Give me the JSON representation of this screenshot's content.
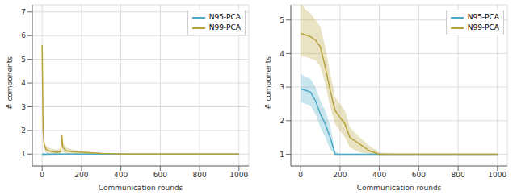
{
  "chart_data": [
    {
      "type": "line",
      "xlabel": "Communication rounds",
      "ylabel": "# components",
      "grid": true,
      "legend": "upper right",
      "x": [
        0,
        5,
        10,
        20,
        30,
        50,
        75,
        95,
        100,
        105,
        120,
        150,
        200,
        250,
        300,
        350,
        400,
        500,
        600,
        700,
        800,
        900,
        1000
      ],
      "xlim": [
        -50,
        1050
      ],
      "xticks": [
        0,
        200,
        400,
        600,
        800,
        1000
      ],
      "ylim": [
        0.5,
        7.3
      ],
      "yticks": [
        1,
        2,
        3,
        4,
        5,
        6,
        7
      ],
      "series": [
        {
          "name": "N95-PCA",
          "color": "#4ba9c8",
          "values": [
            1,
            1,
            1,
            1,
            1,
            1,
            1,
            1,
            1,
            1,
            1,
            1,
            1,
            1,
            1,
            1,
            1,
            1,
            1,
            1,
            1,
            1,
            1
          ],
          "lower": [
            0.9,
            0.9,
            0.92,
            0.94,
            0.95,
            0.96,
            0.97,
            0.98,
            0.98,
            0.98,
            0.99,
            1,
            1,
            1,
            1,
            1,
            1,
            1,
            1,
            1,
            1,
            1,
            1
          ],
          "upper": [
            1,
            1,
            1,
            1,
            1,
            1,
            1,
            1,
            1,
            1,
            1,
            1,
            1,
            1,
            1,
            1,
            1,
            1,
            1,
            1,
            1,
            1,
            1
          ]
        },
        {
          "name": "N99-PCA",
          "color": "#b5a33a",
          "values": [
            5.6,
            2.0,
            1.4,
            1.2,
            1.15,
            1.1,
            1.08,
            1.1,
            1.8,
            1.3,
            1.15,
            1.1,
            1.08,
            1.05,
            1.03,
            1.02,
            1.0,
            1.0,
            1.0,
            1.0,
            1.0,
            1.0,
            1.0
          ],
          "lower": [
            5.2,
            1.7,
            1.2,
            1.05,
            1.0,
            0.98,
            0.98,
            1.0,
            1.5,
            1.1,
            1.0,
            1.0,
            1.0,
            1.0,
            1.0,
            1.0,
            1.0,
            1.0,
            1.0,
            1.0,
            1.0,
            1.0,
            1.0
          ],
          "upper": [
            5.7,
            2.3,
            1.6,
            1.35,
            1.3,
            1.22,
            1.2,
            1.25,
            1.9,
            1.5,
            1.3,
            1.2,
            1.15,
            1.1,
            1.06,
            1.04,
            1.02,
            1.0,
            1.0,
            1.0,
            1.0,
            1.0,
            1.0
          ]
        }
      ]
    },
    {
      "type": "line",
      "xlabel": "Communication rounds",
      "ylabel": "# components",
      "grid": true,
      "legend": "upper right",
      "x": [
        0,
        25,
        50,
        75,
        100,
        125,
        150,
        175,
        200,
        225,
        250,
        300,
        350,
        400,
        500,
        600,
        700,
        800,
        900,
        1000
      ],
      "xlim": [
        -50,
        1050
      ],
      "xticks": [
        0,
        200,
        400,
        600,
        800,
        1000
      ],
      "ylim": [
        0.65,
        5.45
      ],
      "yticks": [
        1,
        2,
        3,
        4,
        5
      ],
      "series": [
        {
          "name": "N95-PCA",
          "color": "#4ba9c8",
          "values": [
            2.95,
            2.9,
            2.85,
            2.6,
            2.2,
            1.9,
            1.5,
            1.0,
            1.0,
            1.0,
            1.0,
            1.0,
            1.0,
            1.0,
            1.0,
            1.0,
            1.0,
            1.0,
            1.0,
            1.0
          ],
          "lower": [
            2.55,
            2.5,
            2.45,
            2.2,
            1.8,
            1.5,
            1.15,
            1.0,
            1.0,
            1.0,
            1.0,
            1.0,
            1.0,
            1.0,
            1.0,
            1.0,
            1.0,
            1.0,
            1.0,
            1.0
          ],
          "upper": [
            3.4,
            3.3,
            3.25,
            3.0,
            2.6,
            2.3,
            1.85,
            1.1,
            1.0,
            1.0,
            1.0,
            1.0,
            1.0,
            1.0,
            1.0,
            1.0,
            1.0,
            1.0,
            1.0,
            1.0
          ]
        },
        {
          "name": "N99-PCA",
          "color": "#b5a33a",
          "values": [
            4.6,
            4.55,
            4.5,
            4.4,
            4.2,
            3.6,
            2.9,
            2.3,
            2.1,
            1.9,
            1.5,
            1.3,
            1.1,
            1.0,
            1.0,
            1.0,
            1.0,
            1.0,
            1.0,
            1.0
          ],
          "lower": [
            3.9,
            3.9,
            3.85,
            3.8,
            3.6,
            3.1,
            2.4,
            1.9,
            1.7,
            1.5,
            1.2,
            1.05,
            1.0,
            1.0,
            1.0,
            1.0,
            1.0,
            1.0,
            1.0,
            1.0
          ],
          "upper": [
            5.5,
            5.3,
            5.2,
            5.0,
            4.8,
            4.2,
            3.4,
            2.7,
            2.5,
            2.3,
            1.8,
            1.5,
            1.25,
            1.05,
            1.0,
            1.0,
            1.0,
            1.0,
            1.0,
            1.0
          ]
        }
      ]
    }
  ]
}
